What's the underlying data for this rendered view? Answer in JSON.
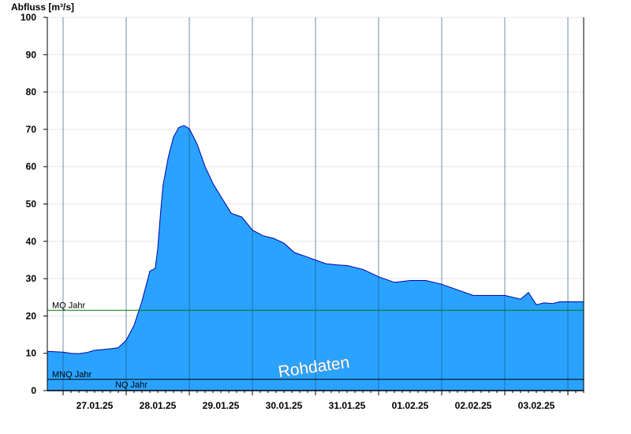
{
  "chart_data": {
    "type": "area",
    "title": "",
    "ylabel": "Abfluss [m³/s]",
    "xlabel": "",
    "ylim": [
      0,
      100
    ],
    "yticks": [
      0,
      10,
      20,
      30,
      40,
      50,
      60,
      70,
      80,
      90,
      100
    ],
    "xlim": [
      "2025-01-26T18:00",
      "2025-02-04T06:00"
    ],
    "x_tick_labels": [
      "27.01.25",
      "28.01.25",
      "29.01.25",
      "30.01.25",
      "31.01.25",
      "01.02.25",
      "02.02.25",
      "03.02.25"
    ],
    "grid": true,
    "fill_color": "#29a3ff",
    "line_color": "#0000aa",
    "reference_lines": [
      {
        "label": "MQ Jahr",
        "value": 21.5,
        "color": "#007a00"
      },
      {
        "label": "MNQ Jahr",
        "value": 3.0,
        "color": "#000000"
      },
      {
        "label": "NQ Jahr",
        "value": 3.0,
        "color": "#000000"
      }
    ],
    "watermark": "Rohdaten",
    "series": [
      {
        "x": [
          "2025-01-26T18:00",
          "2025-01-26T21:00",
          "2025-01-27T00:00",
          "2025-01-27T03:00",
          "2025-01-27T06:00",
          "2025-01-27T09:00",
          "2025-01-27T12:00",
          "2025-01-27T15:00",
          "2025-01-27T18:00",
          "2025-01-27T21:00",
          "2025-01-28T00:00",
          "2025-01-28T03:00",
          "2025-01-28T06:00",
          "2025-01-28T09:00",
          "2025-01-28T11:00",
          "2025-01-28T12:00",
          "2025-01-28T13:00",
          "2025-01-28T14:00",
          "2025-01-28T16:00",
          "2025-01-28T18:00",
          "2025-01-28T20:00",
          "2025-01-28T22:00",
          "2025-01-29T00:00",
          "2025-01-29T03:00",
          "2025-01-29T06:00",
          "2025-01-29T09:00",
          "2025-01-29T12:00",
          "2025-01-29T16:00",
          "2025-01-29T20:00",
          "2025-01-30T00:00",
          "2025-01-30T04:00",
          "2025-01-30T08:00",
          "2025-01-30T12:00",
          "2025-01-30T16:00",
          "2025-01-30T20:00",
          "2025-01-31T00:00",
          "2025-01-31T04:00",
          "2025-01-31T08:00",
          "2025-01-31T12:00",
          "2025-01-31T18:00",
          "2025-02-01T00:00",
          "2025-02-01T06:00",
          "2025-02-01T12:00",
          "2025-02-01T18:00",
          "2025-02-02T00:00",
          "2025-02-02T06:00",
          "2025-02-02T12:00",
          "2025-02-02T18:00",
          "2025-02-03T00:00",
          "2025-02-03T06:00",
          "2025-02-03T09:00",
          "2025-02-03T12:00",
          "2025-02-03T15:00",
          "2025-02-03T18:00",
          "2025-02-03T21:00",
          "2025-02-04T00:00",
          "2025-02-04T06:00"
        ],
        "y": [
          10.5,
          10.4,
          10.3,
          10.0,
          9.9,
          10.2,
          10.8,
          11.0,
          11.2,
          11.5,
          13.5,
          17.5,
          24.0,
          32.0,
          32.7,
          38.0,
          47.0,
          55.0,
          62.5,
          68.0,
          70.5,
          71.0,
          70.2,
          66.0,
          60.0,
          55.5,
          52.0,
          47.5,
          46.5,
          43.0,
          41.5,
          40.8,
          39.5,
          37.0,
          36.0,
          35.0,
          34.0,
          33.7,
          33.5,
          32.5,
          30.5,
          29.0,
          29.5,
          29.5,
          28.5,
          27.0,
          25.5,
          25.5,
          25.5,
          24.5,
          26.3,
          23.0,
          23.5,
          23.3,
          23.8,
          23.8,
          23.8
        ]
      }
    ]
  }
}
